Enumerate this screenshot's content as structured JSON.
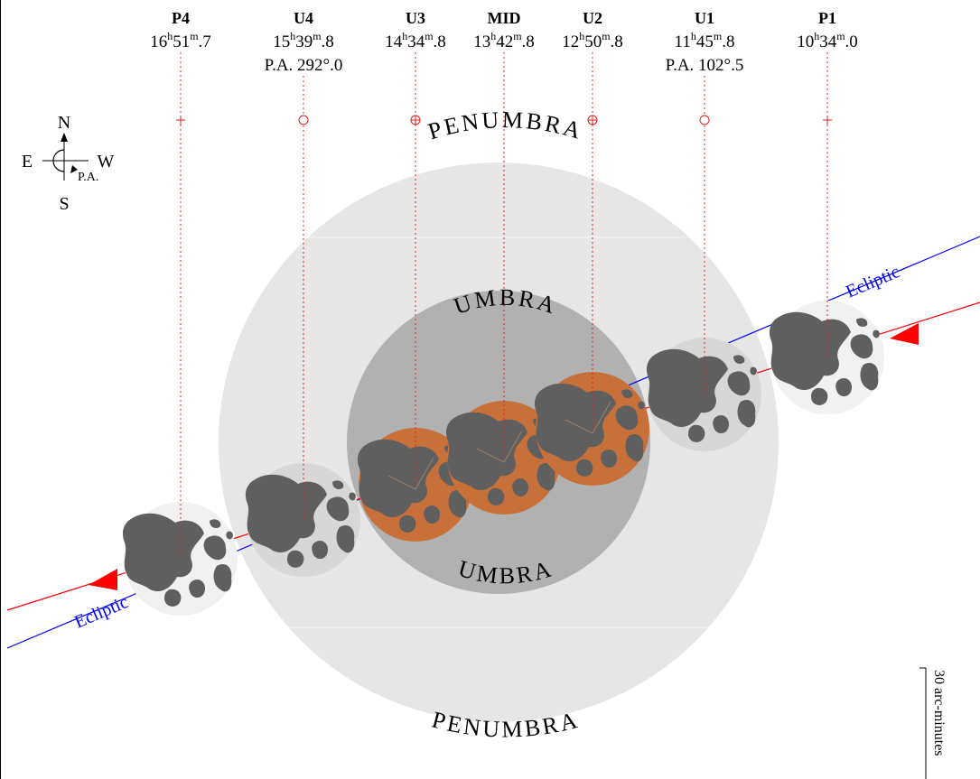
{
  "contacts": [
    {
      "label": "P4",
      "time_h": "16",
      "time_m": "51",
      "time_f": ".7",
      "pa": "",
      "marker": "plus"
    },
    {
      "label": "U4",
      "time_h": "15",
      "time_m": "39",
      "time_f": ".8",
      "pa": "P.A. 292°.0",
      "marker": "ring"
    },
    {
      "label": "U3",
      "time_h": "14",
      "time_m": "34",
      "time_f": ".8",
      "pa": "",
      "marker": "ringplus"
    },
    {
      "label": "MID",
      "time_h": "13",
      "time_m": "42",
      "time_f": ".8",
      "pa": "",
      "marker": "none"
    },
    {
      "label": "U2",
      "time_h": "12",
      "time_m": "50",
      "time_f": ".8",
      "pa": "",
      "marker": "ringplus"
    },
    {
      "label": "U1",
      "time_h": "11",
      "time_m": "45",
      "time_f": ".8",
      "pa": "P.A. 102°.5",
      "marker": "ring"
    },
    {
      "label": "P1",
      "time_h": "10",
      "time_m": "34",
      "time_f": ".0",
      "pa": "",
      "marker": "plus"
    }
  ],
  "hour_unit": "h",
  "minute_unit": "m",
  "compass": {
    "north": "N",
    "south": "S",
    "east": "E",
    "west": "W",
    "pa_label": "P.A."
  },
  "regions": {
    "penumbra": "PENUMBRA",
    "umbra": "UMBRA"
  },
  "ecliptic_label": "Ecliptic",
  "scale_label": "30 arc-minutes",
  "colors": {
    "penumbra": "#e6e6e6",
    "umbra": "#b1b1b1",
    "eclipsed_moon": "#c8703a",
    "moon_penumbral": "#d7d7d7",
    "moon_outside": "#f1f1f1",
    "maria": "#5f5f5f",
    "ecliptic_line": "#0000ff",
    "moon_path": "#ff0000",
    "contact_lines": "#e02020"
  },
  "moon_shading": [
    "outside",
    "penumbral",
    "eclipsed",
    "eclipsed",
    "eclipsed",
    "penumbral",
    "outside"
  ]
}
